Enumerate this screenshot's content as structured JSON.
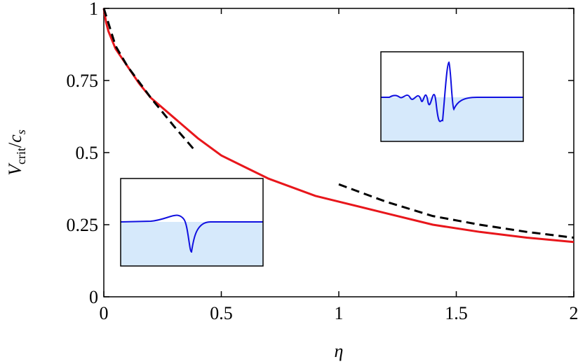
{
  "chart_data": {
    "type": "line",
    "xlabel": "η",
    "ylabel": [
      "V",
      "crit",
      "/",
      "c",
      "s"
    ],
    "xlim": [
      0,
      2
    ],
    "ylim": [
      0,
      1
    ],
    "xticks": [
      0,
      0.5,
      1,
      1.5,
      2
    ],
    "yticks": [
      0,
      0.25,
      0.5,
      0.75,
      1
    ],
    "series": [
      {
        "color": "#e8161b",
        "dash": false,
        "x": [
          0,
          0.01,
          0.02,
          0.05,
          0.1,
          0.15,
          0.2,
          0.3,
          0.4,
          0.5,
          0.6,
          0.7,
          0.8,
          0.9,
          1,
          1.2,
          1.4,
          1.6,
          1.8,
          2
        ],
        "values": [
          1,
          0.95,
          0.92,
          0.86,
          0.8,
          0.74,
          0.69,
          0.62,
          0.55,
          0.49,
          0.45,
          0.41,
          0.38,
          0.35,
          0.33,
          0.29,
          0.25,
          0.225,
          0.205,
          0.19
        ]
      },
      {
        "color": "#000000",
        "dash": true,
        "x": [
          0,
          0.05,
          0.1,
          0.2,
          0.3,
          0.39
        ],
        "values": [
          1,
          0.87,
          0.8,
          0.69,
          0.59,
          0.505
        ]
      },
      {
        "color": "#000000",
        "dash": true,
        "x": [
          1,
          1.2,
          1.4,
          1.6,
          1.8,
          2
        ],
        "values": [
          0.39,
          0.33,
          0.28,
          0.25,
          0.225,
          0.205
        ]
      }
    ]
  }
}
